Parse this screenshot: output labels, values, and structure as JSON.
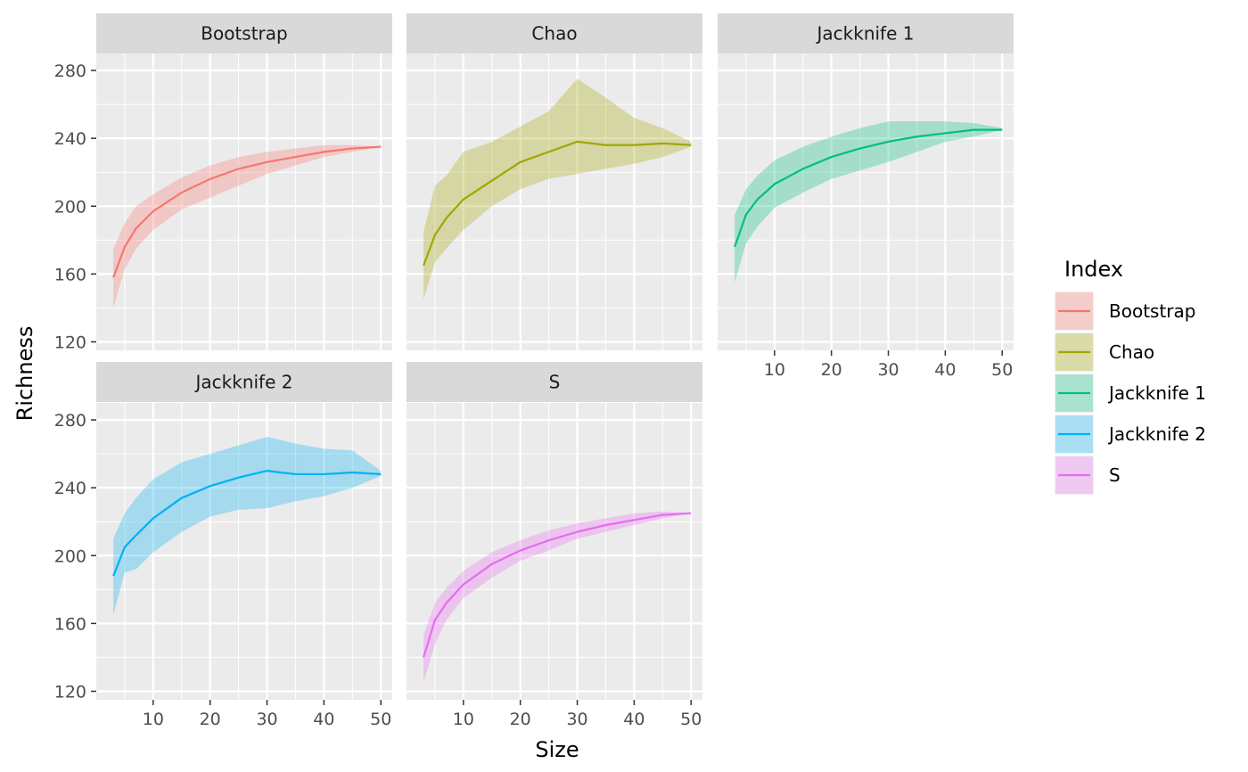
{
  "chart_data": {
    "type": "area",
    "xlabel": "Size",
    "ylabel": "Richness",
    "xlim": [
      0,
      52
    ],
    "ylim": [
      115,
      290
    ],
    "x_ticks": [
      10,
      20,
      30,
      40,
      50
    ],
    "y_ticks": [
      120,
      160,
      200,
      240,
      280
    ],
    "grid": true,
    "legend": {
      "title": "Index",
      "position": "right",
      "entries": [
        "Bootstrap",
        "Chao",
        "Jackknife 1",
        "Jackknife 2",
        "S"
      ]
    },
    "x": [
      3,
      5,
      7,
      10,
      15,
      20,
      25,
      30,
      35,
      40,
      45,
      50
    ],
    "panels": [
      {
        "name": "Bootstrap",
        "color": "#F8766D",
        "values": [
          158,
          176,
          187,
          197,
          208,
          216,
          222,
          226,
          229,
          232,
          234,
          235
        ],
        "lower": [
          140,
          163,
          175,
          186,
          198,
          205,
          212,
          219,
          224,
          229,
          232,
          235
        ],
        "upper": [
          175,
          190,
          200,
          207,
          217,
          224,
          229,
          232,
          234,
          236,
          236,
          235
        ]
      },
      {
        "name": "Chao",
        "color": "#A3A500",
        "values": [
          165,
          183,
          193,
          204,
          215,
          226,
          232,
          238,
          236,
          236,
          237,
          236
        ],
        "lower": [
          145,
          167,
          175,
          186,
          200,
          210,
          216,
          219,
          222,
          225,
          229,
          235
        ],
        "upper": [
          185,
          212,
          218,
          232,
          238,
          247,
          256,
          275,
          264,
          252,
          246,
          238
        ]
      },
      {
        "name": "Jackknife 1",
        "color": "#00BF7D",
        "values": [
          176,
          195,
          204,
          213,
          222,
          229,
          234,
          238,
          241,
          243,
          245,
          245
        ],
        "lower": [
          155,
          178,
          188,
          199,
          208,
          216,
          221,
          226,
          232,
          238,
          241,
          245
        ],
        "upper": [
          195,
          210,
          218,
          227,
          235,
          241,
          246,
          250,
          250,
          250,
          249,
          246
        ]
      },
      {
        "name": "Jackknife 2",
        "color": "#00B0F6",
        "values": [
          188,
          205,
          212,
          222,
          234,
          241,
          246,
          250,
          248,
          248,
          249,
          248
        ],
        "lower": [
          165,
          190,
          192,
          202,
          214,
          223,
          227,
          228,
          232,
          235,
          240,
          247
        ],
        "upper": [
          210,
          225,
          234,
          245,
          255,
          260,
          265,
          270,
          266,
          263,
          262,
          250
        ]
      },
      {
        "name": "S",
        "color": "#E76BF3",
        "values": [
          140,
          162,
          172,
          183,
          195,
          203,
          209,
          214,
          218,
          221,
          224,
          225
        ],
        "lower": [
          125,
          148,
          162,
          175,
          187,
          197,
          203,
          210,
          214,
          218,
          222,
          225
        ],
        "upper": [
          153,
          172,
          181,
          191,
          202,
          209,
          215,
          219,
          222,
          225,
          226,
          225
        ]
      }
    ]
  }
}
